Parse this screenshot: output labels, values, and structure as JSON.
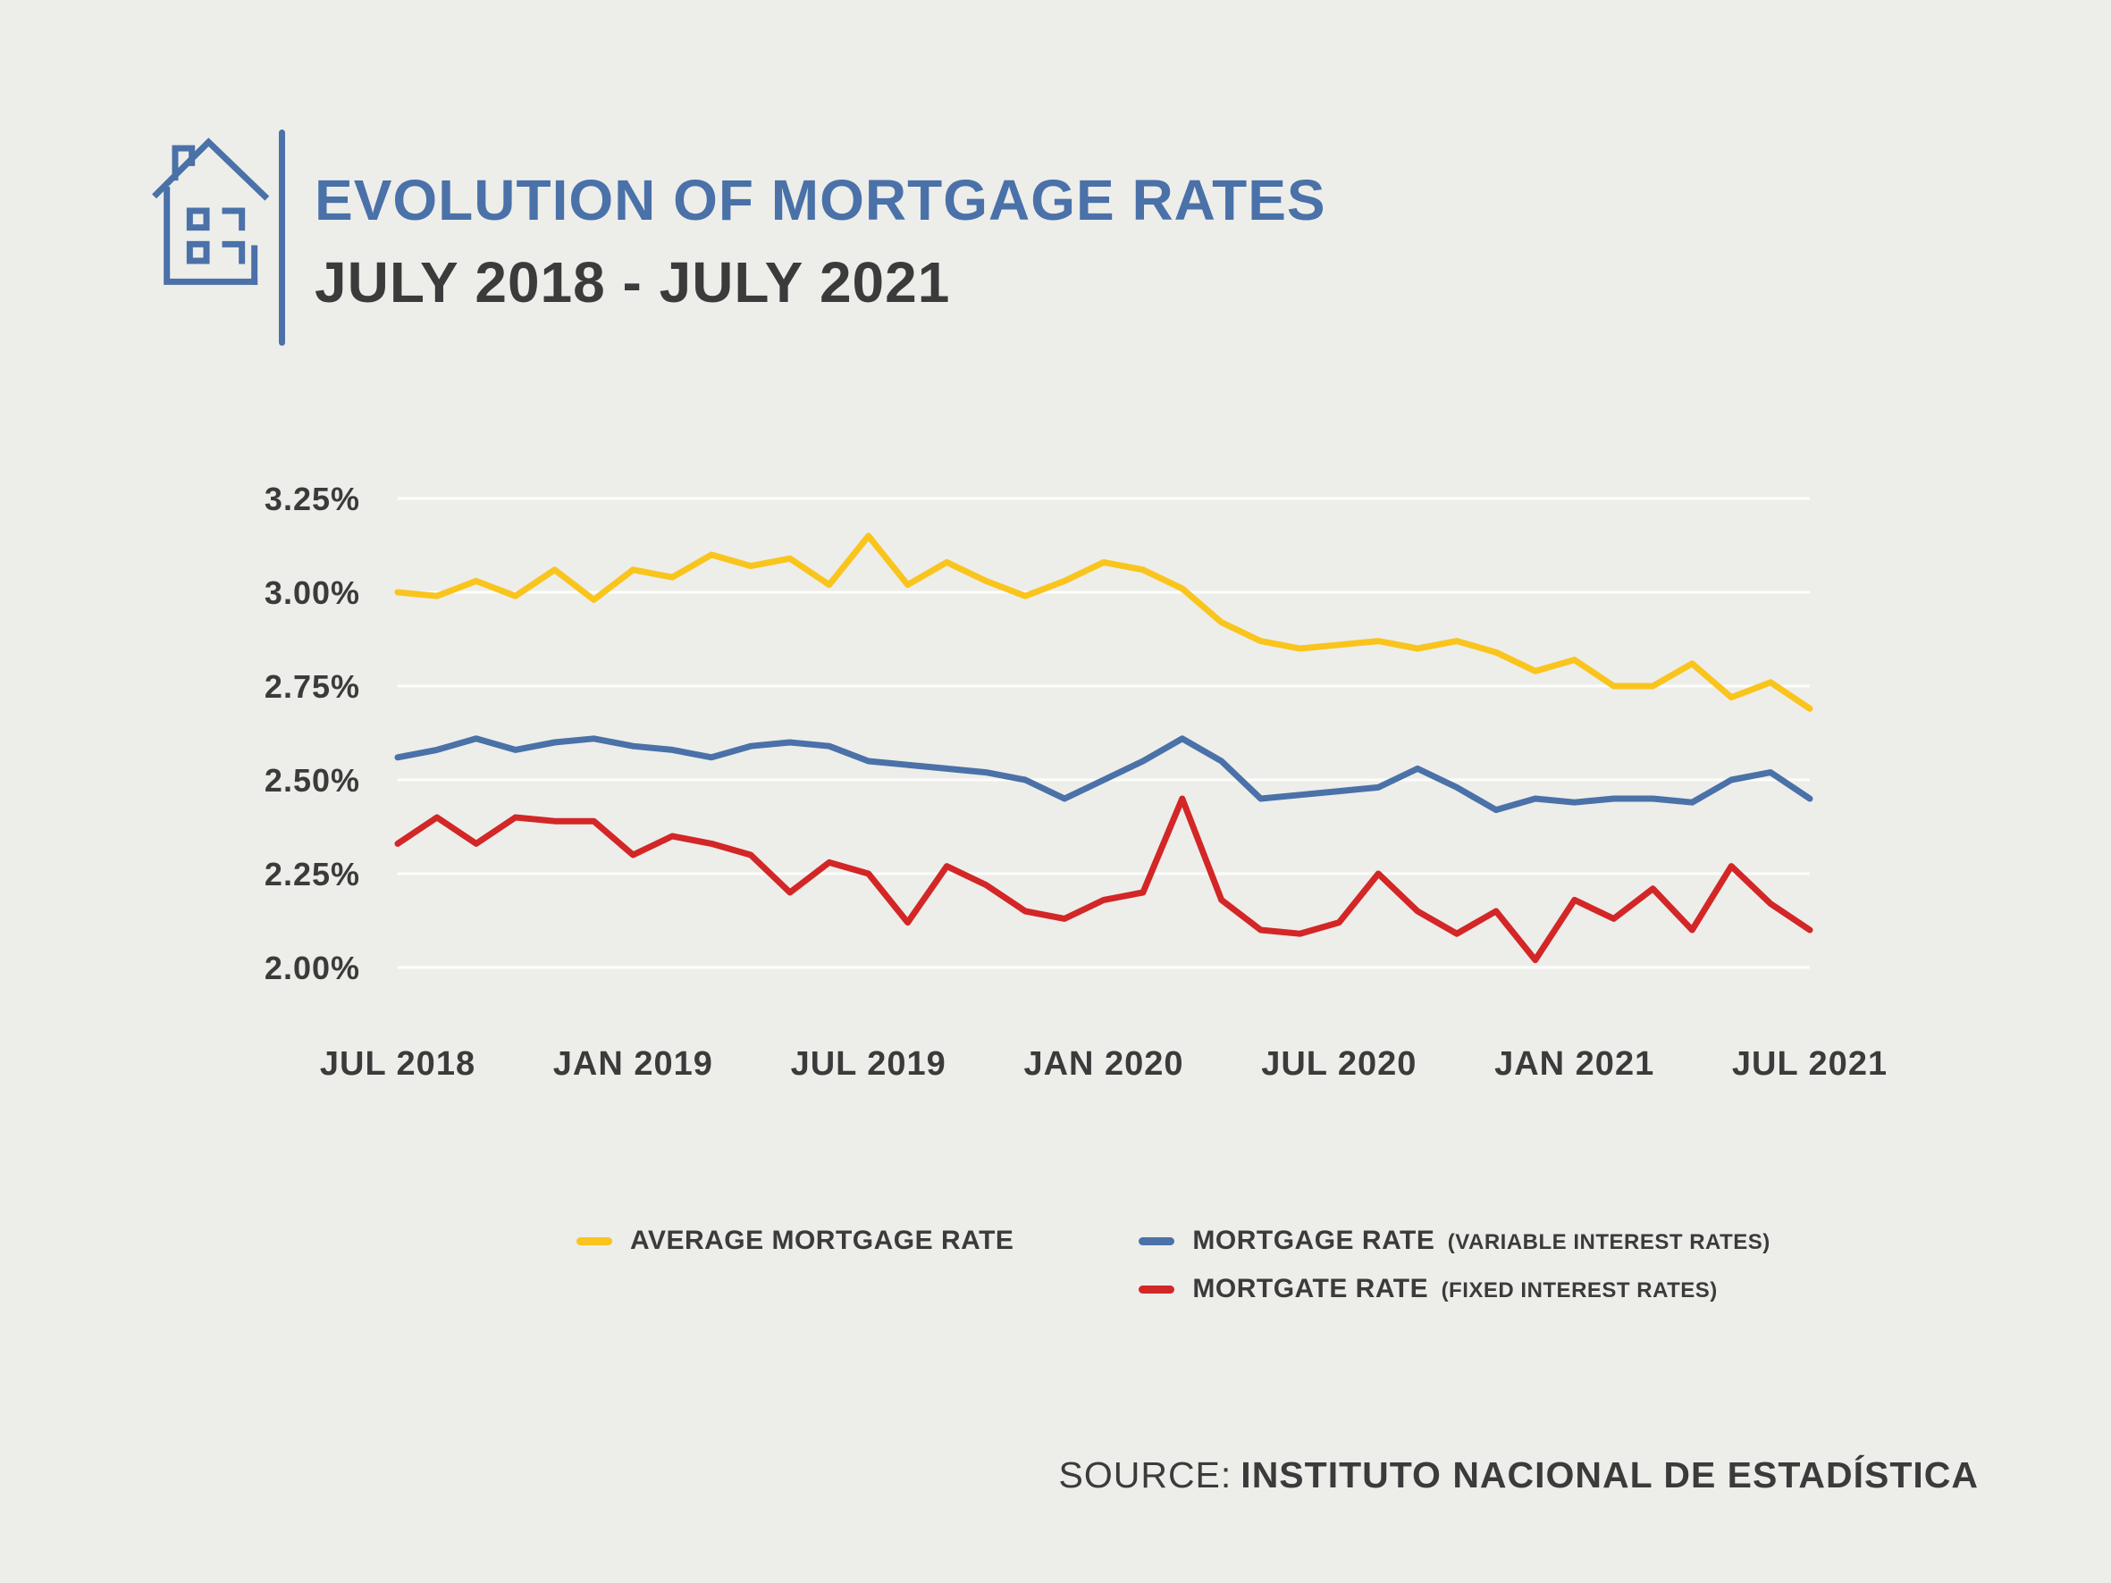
{
  "theme": {
    "accent": "#4A71A8",
    "ink": "#3B3B3B",
    "background": "#EDEDEA",
    "grid": "#FFFFFF"
  },
  "header": {
    "title": "EVOLUTION OF MORTGAGE RATES",
    "subtitle": "JULY 2018 - JULY 2021",
    "icon": "house-line-art-icon"
  },
  "chart_data": {
    "type": "line",
    "title": "Evolution of Mortgage Rates July 2018 - July 2021",
    "xlabel": "",
    "ylabel": "",
    "grid": "horizontal",
    "legend_position": "bottom",
    "ylim": [
      2.0,
      3.25
    ],
    "y_ticks": [
      {
        "value": 3.25,
        "label": "3.25%"
      },
      {
        "value": 3.0,
        "label": "3.00%"
      },
      {
        "value": 2.75,
        "label": "2.75%"
      },
      {
        "value": 2.5,
        "label": "2.50%"
      },
      {
        "value": 2.25,
        "label": "2.25%"
      },
      {
        "value": 2.0,
        "label": "2.00%"
      }
    ],
    "x_tick_labels": [
      "JUL 2018",
      "JAN 2019",
      "JUL 2019",
      "JAN 2020",
      "JUL 2020",
      "JAN 2021",
      "JUL 2021"
    ],
    "x_tick_indices": [
      0,
      6,
      12,
      18,
      24,
      30,
      36
    ],
    "x_unit": "month",
    "series": [
      {
        "name": "AVERAGE MORTGAGE RATE",
        "color": "#F9C51D",
        "values": [
          3.0,
          2.99,
          3.03,
          2.99,
          3.06,
          2.98,
          3.06,
          3.04,
          3.1,
          3.07,
          3.09,
          3.02,
          3.15,
          3.02,
          3.08,
          3.03,
          2.99,
          3.03,
          3.08,
          3.06,
          3.01,
          2.92,
          2.87,
          2.85,
          2.86,
          2.87,
          2.85,
          2.87,
          2.84,
          2.79,
          2.82,
          2.75,
          2.75,
          2.81,
          2.72,
          2.76,
          2.69
        ]
      },
      {
        "name": "MORTGAGE RATE (VARIABLE INTEREST RATES)",
        "color": "#4A71A8",
        "values": [
          2.56,
          2.58,
          2.61,
          2.58,
          2.6,
          2.61,
          2.59,
          2.58,
          2.56,
          2.59,
          2.6,
          2.59,
          2.55,
          2.54,
          2.53,
          2.52,
          2.5,
          2.45,
          2.5,
          2.55,
          2.61,
          2.55,
          2.45,
          2.46,
          2.47,
          2.48,
          2.53,
          2.48,
          2.42,
          2.45,
          2.44,
          2.45,
          2.45,
          2.44,
          2.5,
          2.52,
          2.45
        ]
      },
      {
        "name": "MORTGATE RATE (FIXED INTEREST RATES)",
        "color": "#D32626",
        "values": [
          2.33,
          2.4,
          2.33,
          2.4,
          2.39,
          2.39,
          2.3,
          2.35,
          2.33,
          2.3,
          2.2,
          2.28,
          2.25,
          2.12,
          2.27,
          2.22,
          2.15,
          2.13,
          2.18,
          2.2,
          2.45,
          2.18,
          2.1,
          2.09,
          2.12,
          2.25,
          2.15,
          2.09,
          2.15,
          2.02,
          2.18,
          2.13,
          2.21,
          2.1,
          2.27,
          2.17,
          2.1
        ]
      }
    ]
  },
  "legend": {
    "items": [
      {
        "label": "AVERAGE MORTGAGE RATE",
        "sublabel": "",
        "color": "#F9C51D"
      },
      {
        "label": "MORTGAGE RATE",
        "sublabel": "(VARIABLE INTEREST RATES)",
        "color": "#4A71A8"
      },
      {
        "label": "MORTGATE RATE",
        "sublabel": "(FIXED INTEREST RATES)",
        "color": "#D32626"
      }
    ]
  },
  "source": {
    "prefix": "SOURCE:",
    "name": "INSTITUTO NACIONAL DE ESTADÍSTICA"
  }
}
